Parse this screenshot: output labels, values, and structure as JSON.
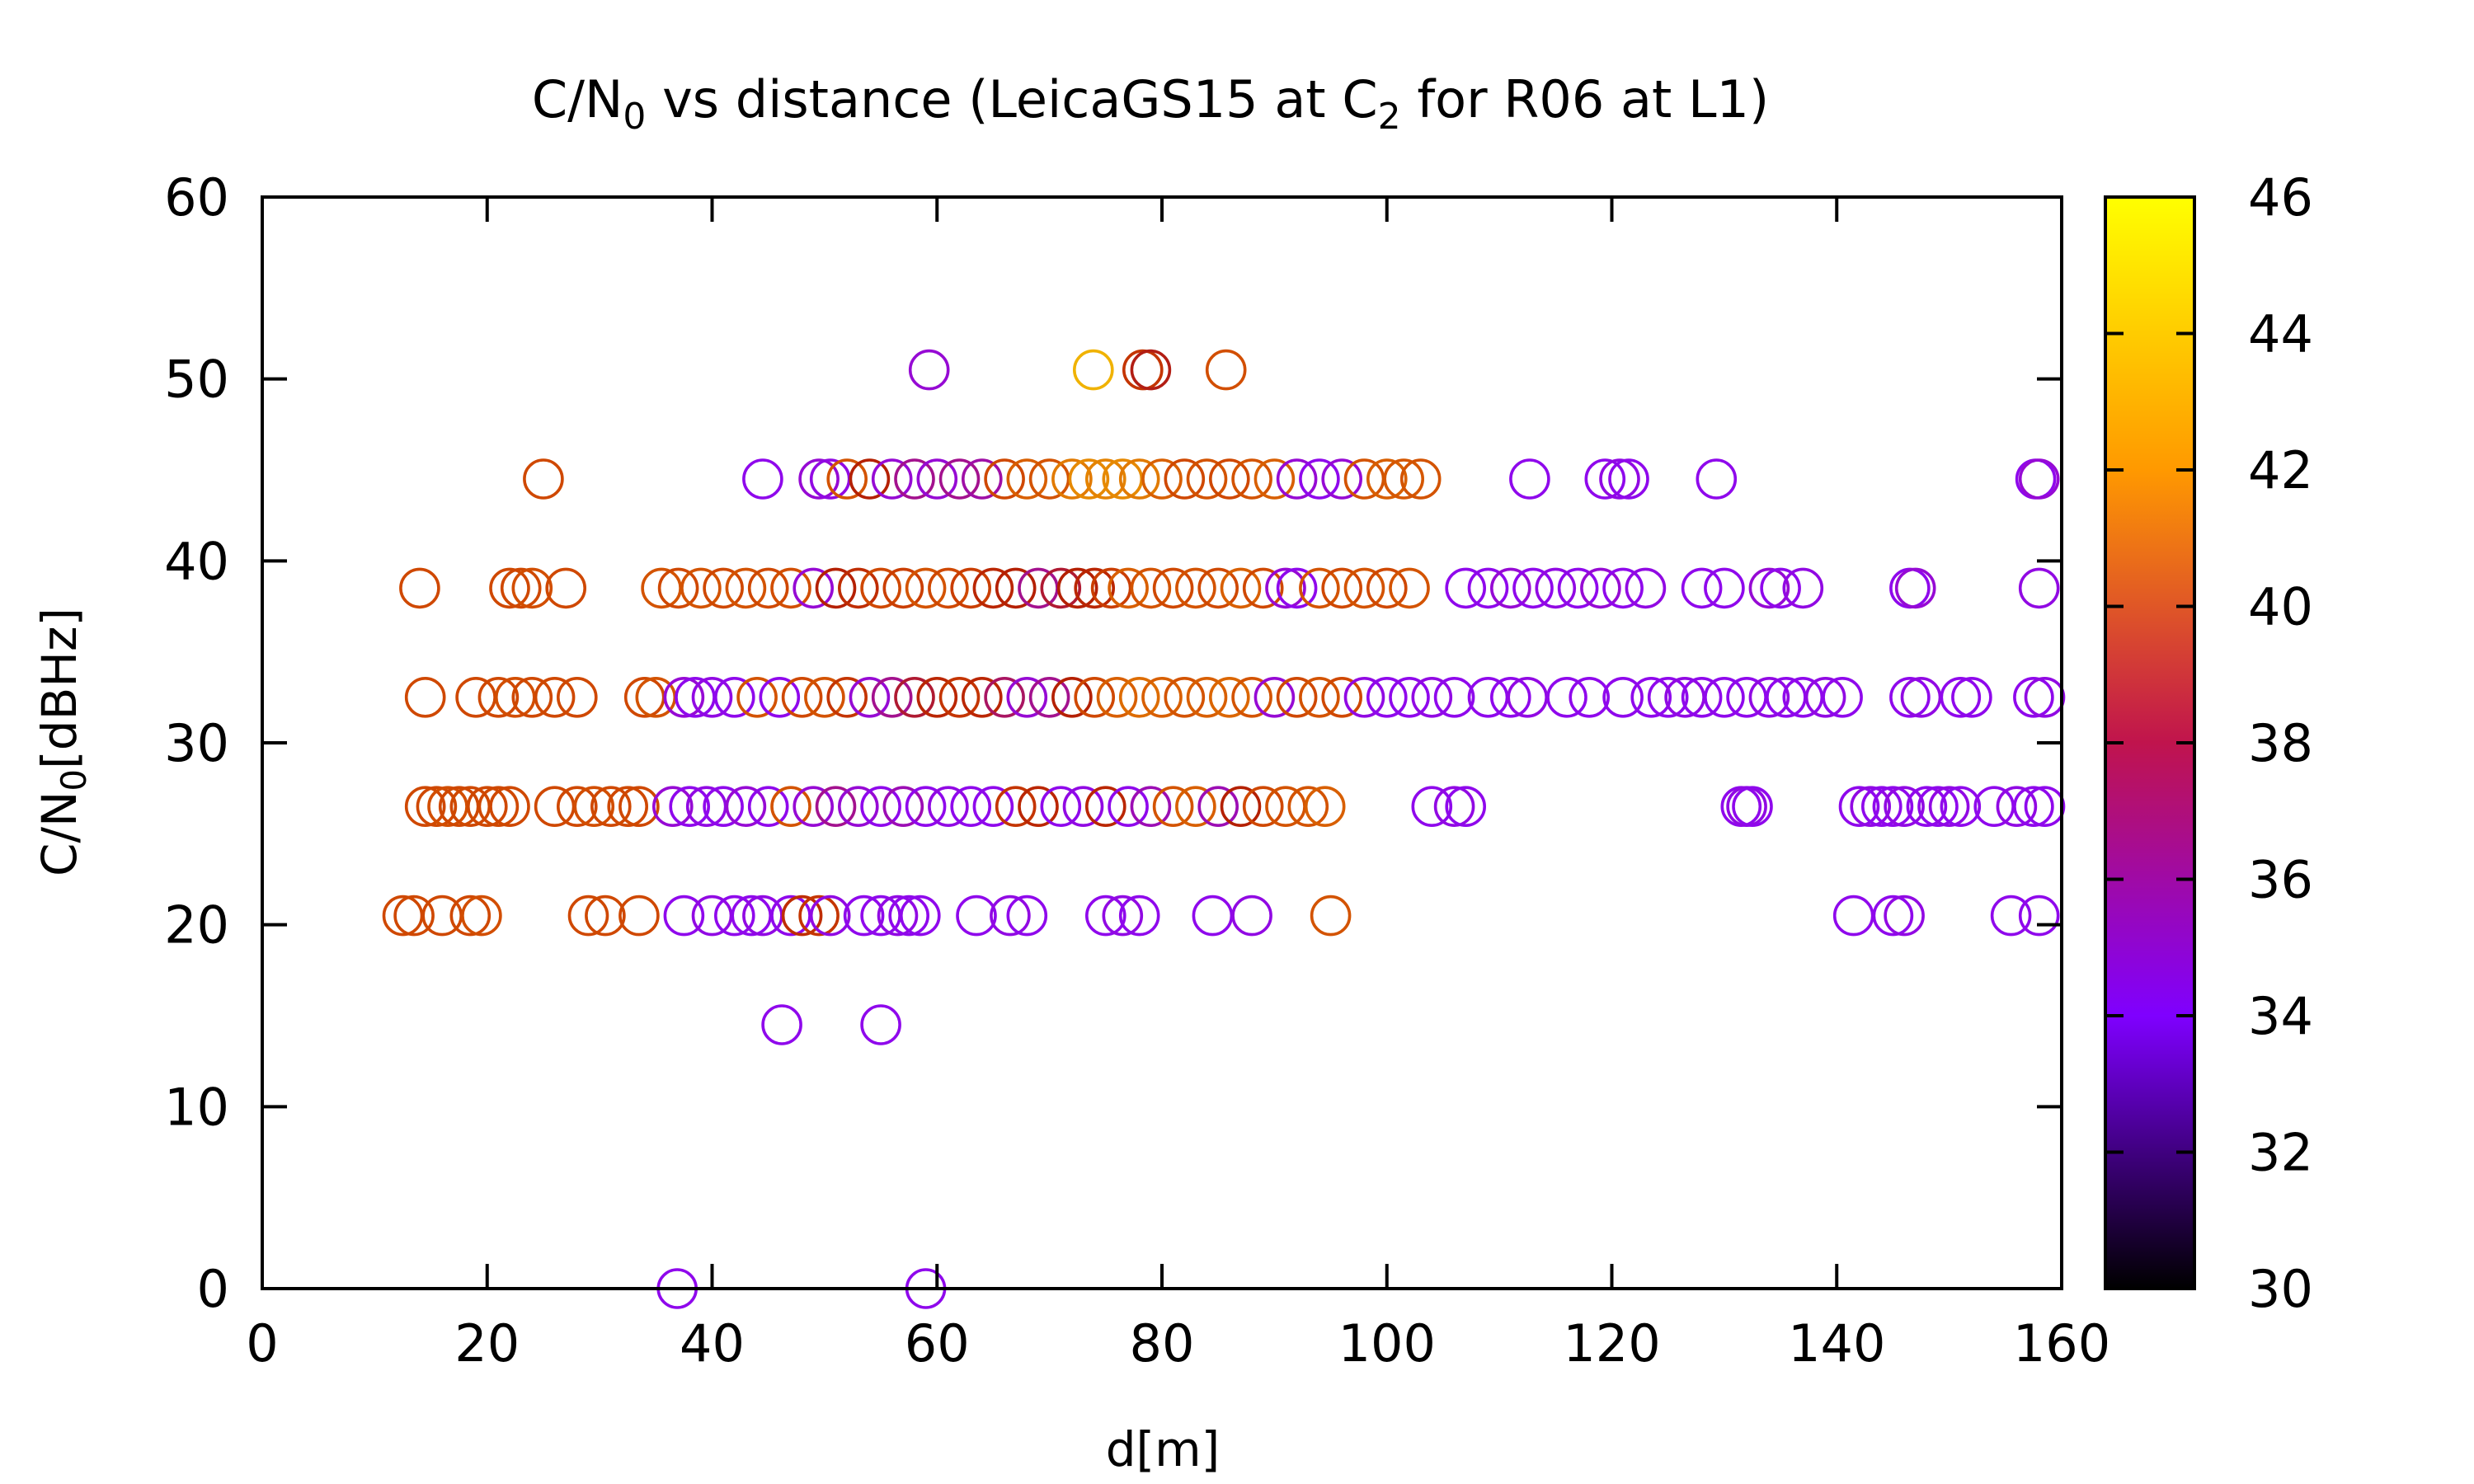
{
  "chart_data": {
    "type": "scatter",
    "title": {
      "main": "C/N",
      "sub0": "0",
      "mid": " vs distance (LeicaGS15 at C",
      "sub2": "2",
      "end": " for R06 at L1)"
    },
    "xlabel": "d[m]",
    "ylabel": {
      "main": "C/N",
      "sub": "0",
      "end": "[dBHz]"
    },
    "xlim": [
      0,
      160
    ],
    "ylim": [
      0,
      60
    ],
    "xticks": [
      "0",
      "20",
      "40",
      "60",
      "80",
      "100",
      "120",
      "140",
      "160"
    ],
    "yticks": [
      "0",
      "10",
      "20",
      "30",
      "40",
      "50",
      "60"
    ],
    "colorbar": {
      "range": [
        30,
        46
      ],
      "ticks": [
        "30",
        "32",
        "34",
        "36",
        "38",
        "40",
        "42",
        "44",
        "46"
      ],
      "colormap": "gnuplot",
      "colormap_stops": [
        "#000000",
        "#7f00ff",
        "#c0144d",
        "#ff9900",
        "#ffff00"
      ]
    },
    "marker": "open-circle",
    "series": [
      {
        "y": 50.5,
        "points": [
          [
            59.3,
            35.5
          ],
          [
            73.9,
            44.2
          ],
          [
            78.3,
            39.5
          ],
          [
            79.0,
            37.8
          ],
          [
            85.7,
            40.8
          ]
        ]
      },
      {
        "y": 44.5,
        "points": [
          [
            25.0,
            40.5
          ],
          [
            44.5,
            35.0
          ],
          [
            49.5,
            35.5
          ],
          [
            50.5,
            35.2
          ],
          [
            52.0,
            41.0
          ],
          [
            54.0,
            38.0
          ],
          [
            56.0,
            35.5
          ],
          [
            58.0,
            36.5
          ],
          [
            60.0,
            35.5
          ],
          [
            62.0,
            36.5
          ],
          [
            64.0,
            36.2
          ],
          [
            66.0,
            40.5
          ],
          [
            68.0,
            41.5
          ],
          [
            70.0,
            41.0
          ],
          [
            72.0,
            42.5
          ],
          [
            73.5,
            43.0
          ],
          [
            75.0,
            42.8
          ],
          [
            76.5,
            43.0
          ],
          [
            78.0,
            42.5
          ],
          [
            80.0,
            41.5
          ],
          [
            82.0,
            40.5
          ],
          [
            84.0,
            41.0
          ],
          [
            86.0,
            40.5
          ],
          [
            88.0,
            41.0
          ],
          [
            90.0,
            41.5
          ],
          [
            92.0,
            35.5
          ],
          [
            94.0,
            35.0
          ],
          [
            96.0,
            35.5
          ],
          [
            98.0,
            41.0
          ],
          [
            100.0,
            41.5
          ],
          [
            101.5,
            41.2
          ],
          [
            103.0,
            41.0
          ],
          [
            112.7,
            35.0
          ],
          [
            119.4,
            35.0
          ],
          [
            120.7,
            35.2
          ],
          [
            121.5,
            35.0
          ],
          [
            129.3,
            35.0
          ],
          [
            157.7,
            35.0
          ],
          [
            158.0,
            35.5
          ]
        ]
      },
      {
        "y": 38.5,
        "points": [
          [
            14.0,
            40.5
          ],
          [
            22.0,
            40.5
          ],
          [
            23.0,
            40.5
          ],
          [
            24.0,
            40.8
          ],
          [
            27.0,
            40.5
          ],
          [
            35.5,
            41.0
          ],
          [
            37.0,
            40.5
          ],
          [
            39.0,
            41.0
          ],
          [
            41.0,
            40.5
          ],
          [
            43.0,
            41.0
          ],
          [
            45.0,
            40.5
          ],
          [
            47.0,
            40.8
          ],
          [
            49.0,
            35.5
          ],
          [
            51.0,
            38.0
          ],
          [
            53.0,
            39.0
          ],
          [
            55.0,
            40.5
          ],
          [
            57.0,
            40.0
          ],
          [
            59.0,
            41.0
          ],
          [
            61.0,
            40.5
          ],
          [
            63.0,
            40.0
          ],
          [
            65.0,
            38.5
          ],
          [
            67.0,
            38.0
          ],
          [
            69.0,
            36.5
          ],
          [
            71.0,
            37.5
          ],
          [
            72.5,
            38.0
          ],
          [
            74.0,
            38.5
          ],
          [
            75.5,
            40.0
          ],
          [
            77.0,
            41.5
          ],
          [
            79.0,
            41.0
          ],
          [
            81.0,
            40.5
          ],
          [
            83.0,
            41.0
          ],
          [
            85.0,
            40.5
          ],
          [
            87.0,
            41.5
          ],
          [
            89.0,
            40.5
          ],
          [
            91.0,
            35.5
          ],
          [
            92.0,
            35.0
          ],
          [
            94.0,
            41.0
          ],
          [
            96.0,
            40.5
          ],
          [
            98.0,
            41.0
          ],
          [
            100.0,
            40.5
          ],
          [
            102.0,
            41.0
          ],
          [
            107.0,
            35.0
          ],
          [
            109.0,
            35.0
          ],
          [
            111.0,
            35.5
          ],
          [
            113.0,
            35.0
          ],
          [
            115.0,
            35.2
          ],
          [
            117.0,
            35.0
          ],
          [
            119.0,
            35.5
          ],
          [
            121.0,
            35.0
          ],
          [
            123.0,
            35.2
          ],
          [
            128.0,
            35.0
          ],
          [
            130.0,
            35.0
          ],
          [
            134.0,
            35.5
          ],
          [
            135.0,
            35.0
          ],
          [
            137.0,
            35.2
          ],
          [
            146.5,
            35.0
          ],
          [
            147.0,
            35.5
          ],
          [
            158.0,
            35.2
          ]
        ]
      },
      {
        "y": 32.5,
        "points": [
          [
            14.5,
            40.5
          ],
          [
            19.0,
            40.5
          ],
          [
            21.0,
            40.5
          ],
          [
            22.5,
            40.8
          ],
          [
            24.0,
            40.5
          ],
          [
            26.0,
            40.5
          ],
          [
            28.0,
            40.5
          ],
          [
            34.0,
            40.5
          ],
          [
            35.0,
            41.0
          ],
          [
            37.5,
            35.5
          ],
          [
            38.5,
            35.0
          ],
          [
            40.0,
            35.2
          ],
          [
            42.0,
            35.0
          ],
          [
            44.0,
            41.0
          ],
          [
            46.0,
            35.0
          ],
          [
            48.0,
            40.5
          ],
          [
            50.0,
            41.0
          ],
          [
            52.0,
            39.5
          ],
          [
            54.0,
            35.5
          ],
          [
            56.0,
            36.5
          ],
          [
            58.0,
            37.5
          ],
          [
            60.0,
            38.5
          ],
          [
            62.0,
            39.5
          ],
          [
            64.0,
            38.5
          ],
          [
            66.0,
            37.0
          ],
          [
            68.0,
            35.5
          ],
          [
            70.0,
            36.5
          ],
          [
            72.0,
            38.0
          ],
          [
            74.0,
            40.5
          ],
          [
            76.0,
            41.5
          ],
          [
            78.0,
            42.0
          ],
          [
            80.0,
            41.5
          ],
          [
            82.0,
            41.0
          ],
          [
            84.0,
            41.5
          ],
          [
            86.0,
            41.8
          ],
          [
            88.0,
            41.0
          ],
          [
            90.0,
            35.5
          ],
          [
            92.0,
            40.5
          ],
          [
            94.0,
            41.0
          ],
          [
            96.0,
            40.5
          ],
          [
            98.0,
            35.2
          ],
          [
            100.0,
            35.0
          ],
          [
            102.0,
            35.0
          ],
          [
            104.0,
            35.2
          ],
          [
            106.0,
            35.0
          ],
          [
            109.0,
            35.0
          ],
          [
            111.0,
            35.0
          ],
          [
            112.5,
            35.2
          ],
          [
            116.0,
            35.0
          ],
          [
            118.0,
            35.0
          ],
          [
            121.0,
            35.0
          ],
          [
            123.5,
            35.0
          ],
          [
            125.0,
            35.0
          ],
          [
            126.5,
            35.2
          ],
          [
            128.0,
            35.0
          ],
          [
            130.0,
            35.0
          ],
          [
            132.0,
            35.0
          ],
          [
            134.0,
            35.2
          ],
          [
            135.5,
            35.0
          ],
          [
            137.0,
            35.0
          ],
          [
            139.0,
            35.2
          ],
          [
            140.5,
            35.0
          ],
          [
            146.5,
            35.0
          ],
          [
            147.5,
            35.2
          ],
          [
            151.0,
            35.0
          ],
          [
            152.0,
            35.0
          ],
          [
            157.5,
            35.0
          ],
          [
            158.5,
            35.2
          ]
        ]
      },
      {
        "y": 26.5,
        "points": [
          [
            14.5,
            40.5
          ],
          [
            15.5,
            40.5
          ],
          [
            16.5,
            40.8
          ],
          [
            17.5,
            40.5
          ],
          [
            18.5,
            40.5
          ],
          [
            20.0,
            40.5
          ],
          [
            21.0,
            40.5
          ],
          [
            22.0,
            40.5
          ],
          [
            26.0,
            40.5
          ],
          [
            28.0,
            40.5
          ],
          [
            29.5,
            40.8
          ],
          [
            31.0,
            40.5
          ],
          [
            32.5,
            40.5
          ],
          [
            33.5,
            40.5
          ],
          [
            36.5,
            35.5
          ],
          [
            38.0,
            35.0
          ],
          [
            39.5,
            35.2
          ],
          [
            41.0,
            35.0
          ],
          [
            43.0,
            35.5
          ],
          [
            45.0,
            35.0
          ],
          [
            47.0,
            41.0
          ],
          [
            49.0,
            35.5
          ],
          [
            51.0,
            36.5
          ],
          [
            53.0,
            35.5
          ],
          [
            55.0,
            35.0
          ],
          [
            57.0,
            36.0
          ],
          [
            59.0,
            35.0
          ],
          [
            61.0,
            35.2
          ],
          [
            63.0,
            35.0
          ],
          [
            65.0,
            35.0
          ],
          [
            67.0,
            39.5
          ],
          [
            69.0,
            38.5
          ],
          [
            71.0,
            35.0
          ],
          [
            73.0,
            35.2
          ],
          [
            75.0,
            38.5
          ],
          [
            77.0,
            35.0
          ],
          [
            79.0,
            36.0
          ],
          [
            81.0,
            41.0
          ],
          [
            83.0,
            41.5
          ],
          [
            85.0,
            36.0
          ],
          [
            87.0,
            38.0
          ],
          [
            89.0,
            40.5
          ],
          [
            91.0,
            41.0
          ],
          [
            93.0,
            41.0
          ],
          [
            94.5,
            41.5
          ],
          [
            104.0,
            35.0
          ],
          [
            106.0,
            35.2
          ],
          [
            107.0,
            35.0
          ],
          [
            131.5,
            35.0
          ],
          [
            132.0,
            35.2
          ],
          [
            132.5,
            35.0
          ],
          [
            142.0,
            35.0
          ],
          [
            143.0,
            35.2
          ],
          [
            144.0,
            35.0
          ],
          [
            145.0,
            35.0
          ],
          [
            146.0,
            35.2
          ],
          [
            148.0,
            35.0
          ],
          [
            149.0,
            35.0
          ],
          [
            150.0,
            35.2
          ],
          [
            151.0,
            35.0
          ],
          [
            154.0,
            35.0
          ],
          [
            156.0,
            35.2
          ],
          [
            157.5,
            35.0
          ],
          [
            158.5,
            35.0
          ]
        ]
      },
      {
        "y": 20.5,
        "points": [
          [
            12.5,
            40.5
          ],
          [
            13.5,
            40.5
          ],
          [
            16.0,
            40.5
          ],
          [
            18.5,
            40.5
          ],
          [
            19.5,
            40.8
          ],
          [
            29.0,
            40.5
          ],
          [
            30.5,
            40.5
          ],
          [
            33.5,
            40.5
          ],
          [
            37.5,
            35.0
          ],
          [
            40.0,
            35.2
          ],
          [
            42.0,
            35.0
          ],
          [
            43.5,
            35.0
          ],
          [
            44.5,
            35.2
          ],
          [
            47.0,
            35.0
          ],
          [
            48.0,
            39.0
          ],
          [
            49.5,
            39.5
          ],
          [
            50.5,
            35.2
          ],
          [
            53.5,
            35.0
          ],
          [
            55.0,
            35.0
          ],
          [
            56.5,
            35.2
          ],
          [
            57.5,
            35.0
          ],
          [
            58.5,
            35.0
          ],
          [
            63.5,
            35.0
          ],
          [
            66.5,
            35.2
          ],
          [
            68.0,
            35.0
          ],
          [
            75.0,
            35.0
          ],
          [
            76.5,
            35.2
          ],
          [
            78.0,
            35.0
          ],
          [
            84.5,
            35.0
          ],
          [
            88.0,
            35.2
          ],
          [
            95.0,
            41.0
          ],
          [
            141.5,
            35.0
          ],
          [
            145.0,
            35.0
          ],
          [
            146.0,
            35.2
          ],
          [
            155.5,
            35.0
          ],
          [
            158.0,
            35.0
          ]
        ]
      },
      {
        "y": 14.5,
        "points": [
          [
            46.2,
            35.0
          ],
          [
            55.0,
            35.0
          ]
        ]
      },
      {
        "y": 0.0,
        "points": [
          [
            36.9,
            35.0
          ],
          [
            59.0,
            35.0
          ]
        ]
      }
    ]
  }
}
